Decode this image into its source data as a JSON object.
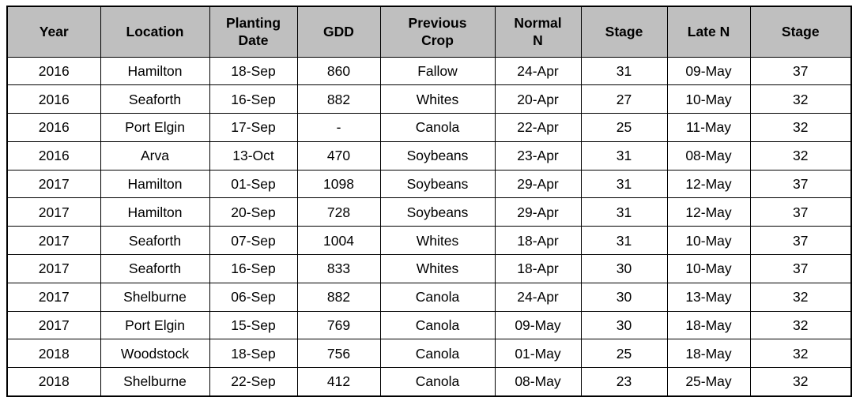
{
  "table": {
    "name": "nitrogen-timing-field-trials-table",
    "columns": [
      "Year",
      "Location",
      "Planting\nDate",
      "GDD",
      "Previous\nCrop",
      "Normal\nN",
      "Stage",
      "Late N",
      "Stage"
    ],
    "rows": [
      [
        "2016",
        "Hamilton",
        "18-Sep",
        "860",
        "Fallow",
        "24-Apr",
        "31",
        "09-May",
        "37"
      ],
      [
        "2016",
        "Seaforth",
        "16-Sep",
        "882",
        "Whites",
        "20-Apr",
        "27",
        "10-May",
        "32"
      ],
      [
        "2016",
        "Port Elgin",
        "17-Sep",
        "-",
        "Canola",
        "22-Apr",
        "25",
        "11-May",
        "32"
      ],
      [
        "2016",
        "Arva",
        "13-Oct",
        "470",
        "Soybeans",
        "23-Apr",
        "31",
        "08-May",
        "32"
      ],
      [
        "2017",
        "Hamilton",
        "01-Sep",
        "1098",
        "Soybeans",
        "29-Apr",
        "31",
        "12-May",
        "37"
      ],
      [
        "2017",
        "Hamilton",
        "20-Sep",
        "728",
        "Soybeans",
        "29-Apr",
        "31",
        "12-May",
        "37"
      ],
      [
        "2017",
        "Seaforth",
        "07-Sep",
        "1004",
        "Whites",
        "18-Apr",
        "31",
        "10-May",
        "37"
      ],
      [
        "2017",
        "Seaforth",
        "16-Sep",
        "833",
        "Whites",
        "18-Apr",
        "30",
        "10-May",
        "37"
      ],
      [
        "2017",
        "Shelburne",
        "06-Sep",
        "882",
        "Canola",
        "24-Apr",
        "30",
        "13-May",
        "32"
      ],
      [
        "2017",
        "Port Elgin",
        "15-Sep",
        "769",
        "Canola",
        "09-May",
        "30",
        "18-May",
        "32"
      ],
      [
        "2018",
        "Woodstock",
        "18-Sep",
        "756",
        "Canola",
        "01-May",
        "25",
        "18-May",
        "32"
      ],
      [
        "2018",
        "Shelburne",
        "22-Sep",
        "412",
        "Canola",
        "08-May",
        "23",
        "25-May",
        "32"
      ]
    ],
    "colors": {
      "header_bg": "#bfbfbf",
      "border": "#000000",
      "text": "#000000",
      "row_bg": "#ffffff"
    }
  }
}
